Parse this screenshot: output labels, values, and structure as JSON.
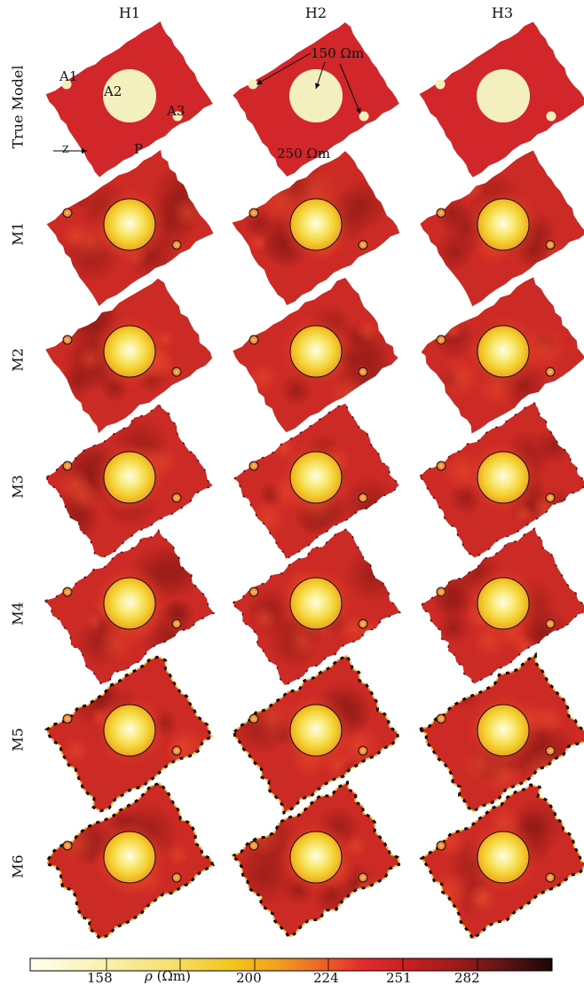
{
  "columns": [
    "H1",
    "H2",
    "H3"
  ],
  "rows": [
    "True Model",
    "M1",
    "M2",
    "M3",
    "M4",
    "M5",
    "M6"
  ],
  "annotations": {
    "a1": "A1",
    "a2": "A2",
    "a3": "A3",
    "p": "P",
    "z": "Z",
    "anomaly_resistivity": "150 Ωm",
    "background_resistivity": "250 Ωm"
  },
  "colorbar": {
    "label_symbol": "ρ",
    "label_unit": " (Ωm)",
    "ticks": [
      "158",
      "200",
      "224",
      "251",
      "282"
    ],
    "colors": [
      "#fffff0",
      "#f8f0b0",
      "#f5e070",
      "#f2c41a",
      "#f2a21e",
      "#ec6a26",
      "#e2292b",
      "#c71e22",
      "#9c1b1b",
      "#5e1414",
      "#1a0505"
    ]
  },
  "colors": {
    "true_background": "#d1272b",
    "true_anomaly": "#f3efbf",
    "panel_base": "#cc2a24"
  }
}
